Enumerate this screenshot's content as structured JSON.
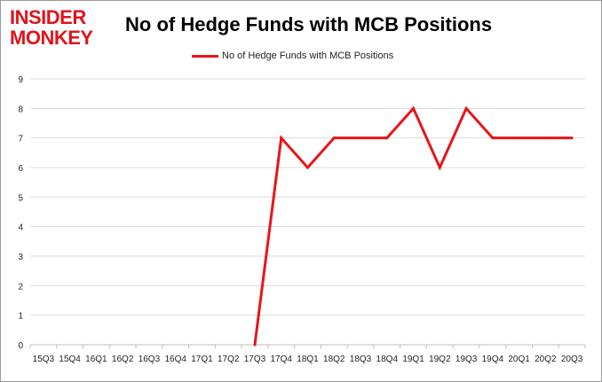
{
  "logo": {
    "word1": "INSIDER",
    "word2": "MONKEY"
  },
  "chart_data": {
    "type": "line",
    "title": "No of Hedge Funds with MCB Positions",
    "xlabel": "",
    "ylabel": "",
    "ylim": [
      0,
      9
    ],
    "grid": true,
    "legend": "top-center",
    "categories": [
      "15Q3",
      "15Q4",
      "16Q1",
      "16Q2",
      "16Q3",
      "16Q4",
      "17Q1",
      "17Q2",
      "17Q3",
      "17Q4",
      "18Q1",
      "18Q2",
      "18Q3",
      "18Q4",
      "19Q1",
      "19Q2",
      "19Q3",
      "19Q4",
      "20Q1",
      "20Q2",
      "20Q3"
    ],
    "yticks": [
      "0",
      "1",
      "2",
      "3",
      "4",
      "5",
      "6",
      "7",
      "8",
      "9"
    ],
    "series": [
      {
        "name": "No of Hedge Funds with MCB Positions",
        "color": "#e8141b",
        "values": [
          null,
          null,
          null,
          null,
          null,
          null,
          null,
          null,
          0,
          7,
          6,
          7,
          7,
          7,
          8,
          6,
          8,
          7,
          7,
          7,
          7
        ]
      }
    ]
  }
}
